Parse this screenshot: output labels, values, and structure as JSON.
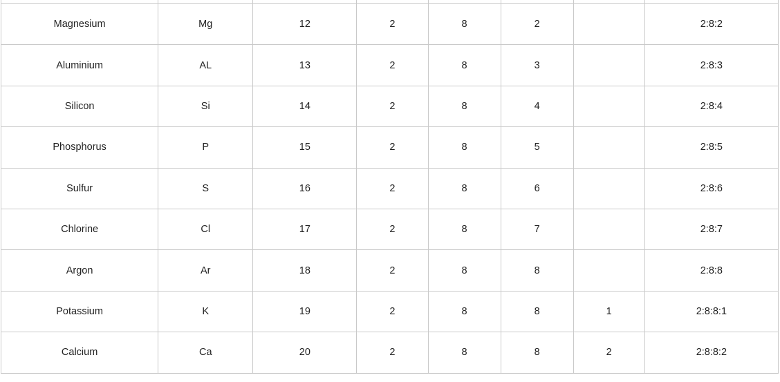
{
  "colors": {
    "background": "#ffffff",
    "grid_border": "#c9c9c9",
    "text": "#222222"
  },
  "table": {
    "column_keys": [
      "name",
      "symbol",
      "atomic_number",
      "shell_1",
      "shell_2",
      "shell_3",
      "shell_4",
      "configuration"
    ],
    "rows": [
      {
        "name": "Magnesium",
        "symbol": "Mg",
        "atomic_number": "12",
        "shell_1": "2",
        "shell_2": "8",
        "shell_3": "2",
        "shell_4": "",
        "configuration": "2:8:2"
      },
      {
        "name": "Aluminium",
        "symbol": "AL",
        "atomic_number": "13",
        "shell_1": "2",
        "shell_2": "8",
        "shell_3": "3",
        "shell_4": "",
        "configuration": "2:8:3"
      },
      {
        "name": "Silicon",
        "symbol": "Si",
        "atomic_number": "14",
        "shell_1": "2",
        "shell_2": "8",
        "shell_3": "4",
        "shell_4": "",
        "configuration": "2:8:4"
      },
      {
        "name": "Phosphorus",
        "symbol": "P",
        "atomic_number": "15",
        "shell_1": "2",
        "shell_2": "8",
        "shell_3": "5",
        "shell_4": "",
        "configuration": "2:8:5"
      },
      {
        "name": "Sulfur",
        "symbol": "S",
        "atomic_number": "16",
        "shell_1": "2",
        "shell_2": "8",
        "shell_3": "6",
        "shell_4": "",
        "configuration": "2:8:6"
      },
      {
        "name": "Chlorine",
        "symbol": "Cl",
        "atomic_number": "17",
        "shell_1": "2",
        "shell_2": "8",
        "shell_3": "7",
        "shell_4": "",
        "configuration": "2:8:7"
      },
      {
        "name": "Argon",
        "symbol": "Ar",
        "atomic_number": "18",
        "shell_1": "2",
        "shell_2": "8",
        "shell_3": "8",
        "shell_4": "",
        "configuration": "2:8:8"
      },
      {
        "name": "Potassium",
        "symbol": "K",
        "atomic_number": "19",
        "shell_1": "2",
        "shell_2": "8",
        "shell_3": "8",
        "shell_4": "1",
        "configuration": "2:8:8:1"
      },
      {
        "name": "Calcium",
        "symbol": "Ca",
        "atomic_number": "20",
        "shell_1": "2",
        "shell_2": "8",
        "shell_3": "8",
        "shell_4": "2",
        "configuration": "2:8:8:2"
      }
    ]
  }
}
